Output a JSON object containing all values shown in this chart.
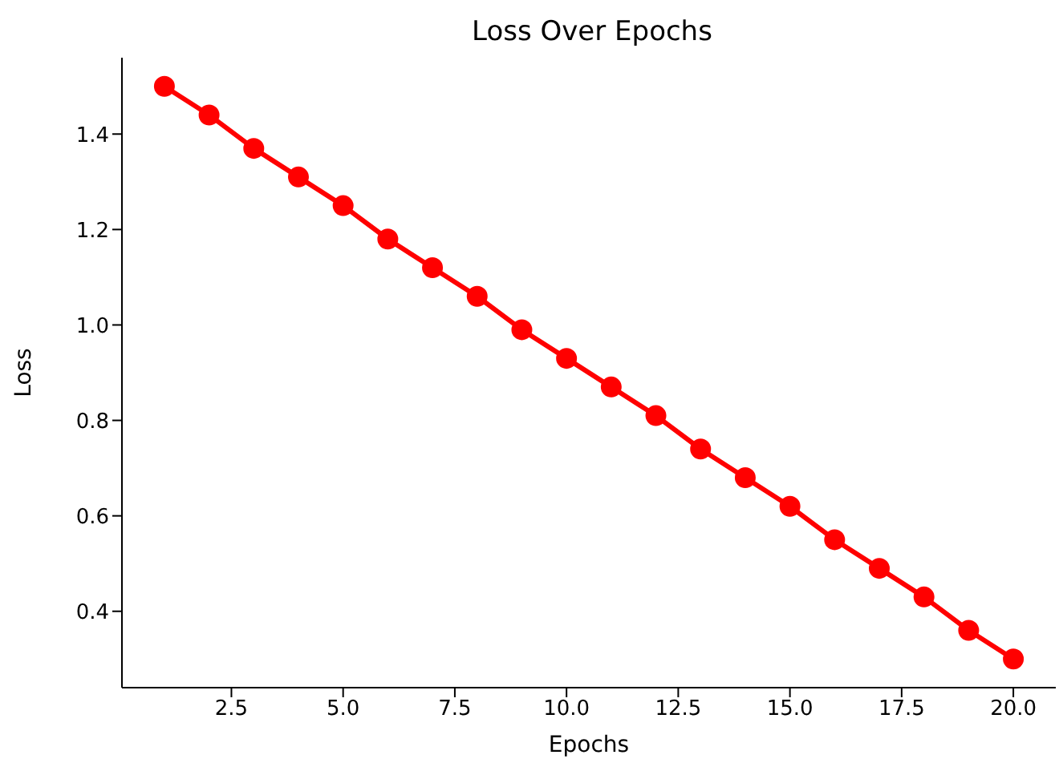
{
  "chart_data": {
    "type": "line",
    "title": "Loss Over Epochs",
    "xlabel": "Epochs",
    "ylabel": "Loss",
    "x": [
      1,
      2,
      3,
      4,
      5,
      6,
      7,
      8,
      9,
      10,
      11,
      12,
      13,
      14,
      15,
      16,
      17,
      18,
      19,
      20
    ],
    "series": [
      {
        "color": "#ff0000",
        "values": [
          1.5,
          1.44,
          1.37,
          1.31,
          1.25,
          1.18,
          1.12,
          1.06,
          0.99,
          0.93,
          0.87,
          0.81,
          0.74,
          0.68,
          0.62,
          0.55,
          0.49,
          0.43,
          0.36,
          0.3
        ]
      }
    ],
    "xlim": [
      0.05,
      20.95
    ],
    "ylim": [
      0.24,
      1.56
    ],
    "xticks": [
      {
        "value": 2.5,
        "label": "2.5"
      },
      {
        "value": 5,
        "label": "5.0"
      },
      {
        "value": 7.5,
        "label": "7.5"
      },
      {
        "value": 10,
        "label": "10.0"
      },
      {
        "value": 12.5,
        "label": "12.5"
      },
      {
        "value": 15,
        "label": "15.0"
      },
      {
        "value": 17.5,
        "label": "17.5"
      },
      {
        "value": 20,
        "label": "20.0"
      }
    ],
    "yticks": [
      {
        "value": 0.4,
        "label": "0.4"
      },
      {
        "value": 0.6,
        "label": "0.6"
      },
      {
        "value": 0.8,
        "label": "0.8"
      },
      {
        "value": 1,
        "label": "1.0"
      },
      {
        "value": 1.2,
        "label": "1.2"
      },
      {
        "value": 1.4,
        "label": "1.4"
      }
    ],
    "grid": false,
    "legend": false,
    "marker": "circle",
    "line_style": "solid"
  }
}
